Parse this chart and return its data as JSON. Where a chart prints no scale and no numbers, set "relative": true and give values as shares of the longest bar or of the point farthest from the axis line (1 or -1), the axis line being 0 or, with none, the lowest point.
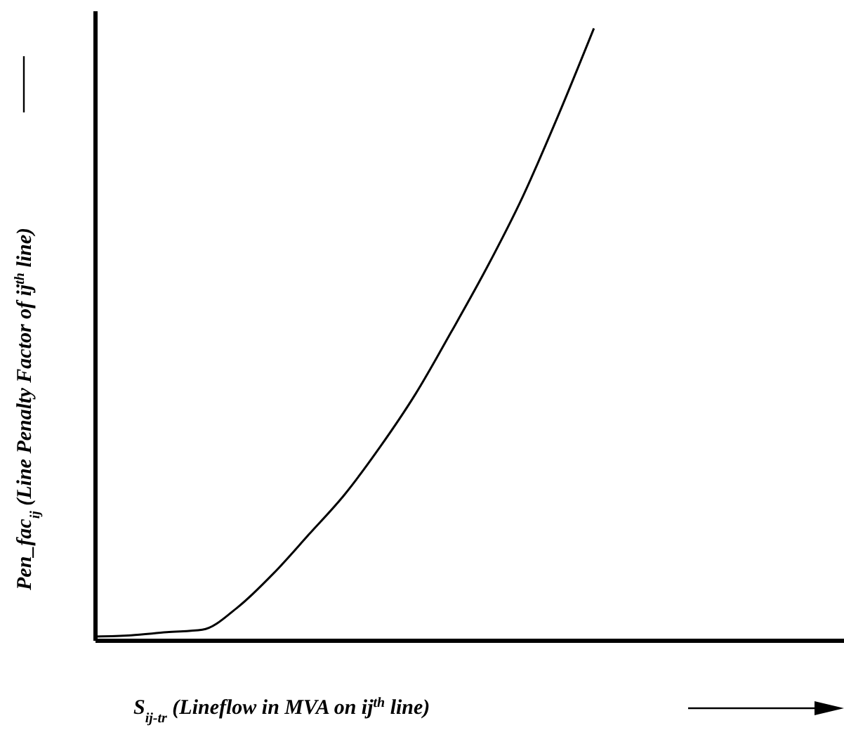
{
  "chart_data": {
    "type": "line",
    "relative": true,
    "xlabel": "S$_{ij-tr}$ (Lineflow in MVA on ij$^{th}$ line)",
    "ylabel": "Pen_fac$_{ij}$ (Line Penalty Factor of ij$^{th}$ line)",
    "categories": [
      null,
      null,
      null,
      null,
      null,
      null,
      null,
      null,
      null,
      null,
      null,
      null,
      null,
      null,
      null,
      null,
      null,
      null,
      null,
      null,
      null
    ],
    "series": [
      {
        "color": "#000000",
        "values": [
          0.007,
          0.009,
          0.014,
          0.018,
          0.055,
          0.11,
          0.174,
          0.239,
          0.317,
          0.404,
          0.505,
          0.61,
          0.725,
          0.858,
          1,
          null,
          null,
          null,
          null,
          null,
          null
        ]
      }
    ],
    "marker": "none",
    "line_style": "solid"
  }
}
